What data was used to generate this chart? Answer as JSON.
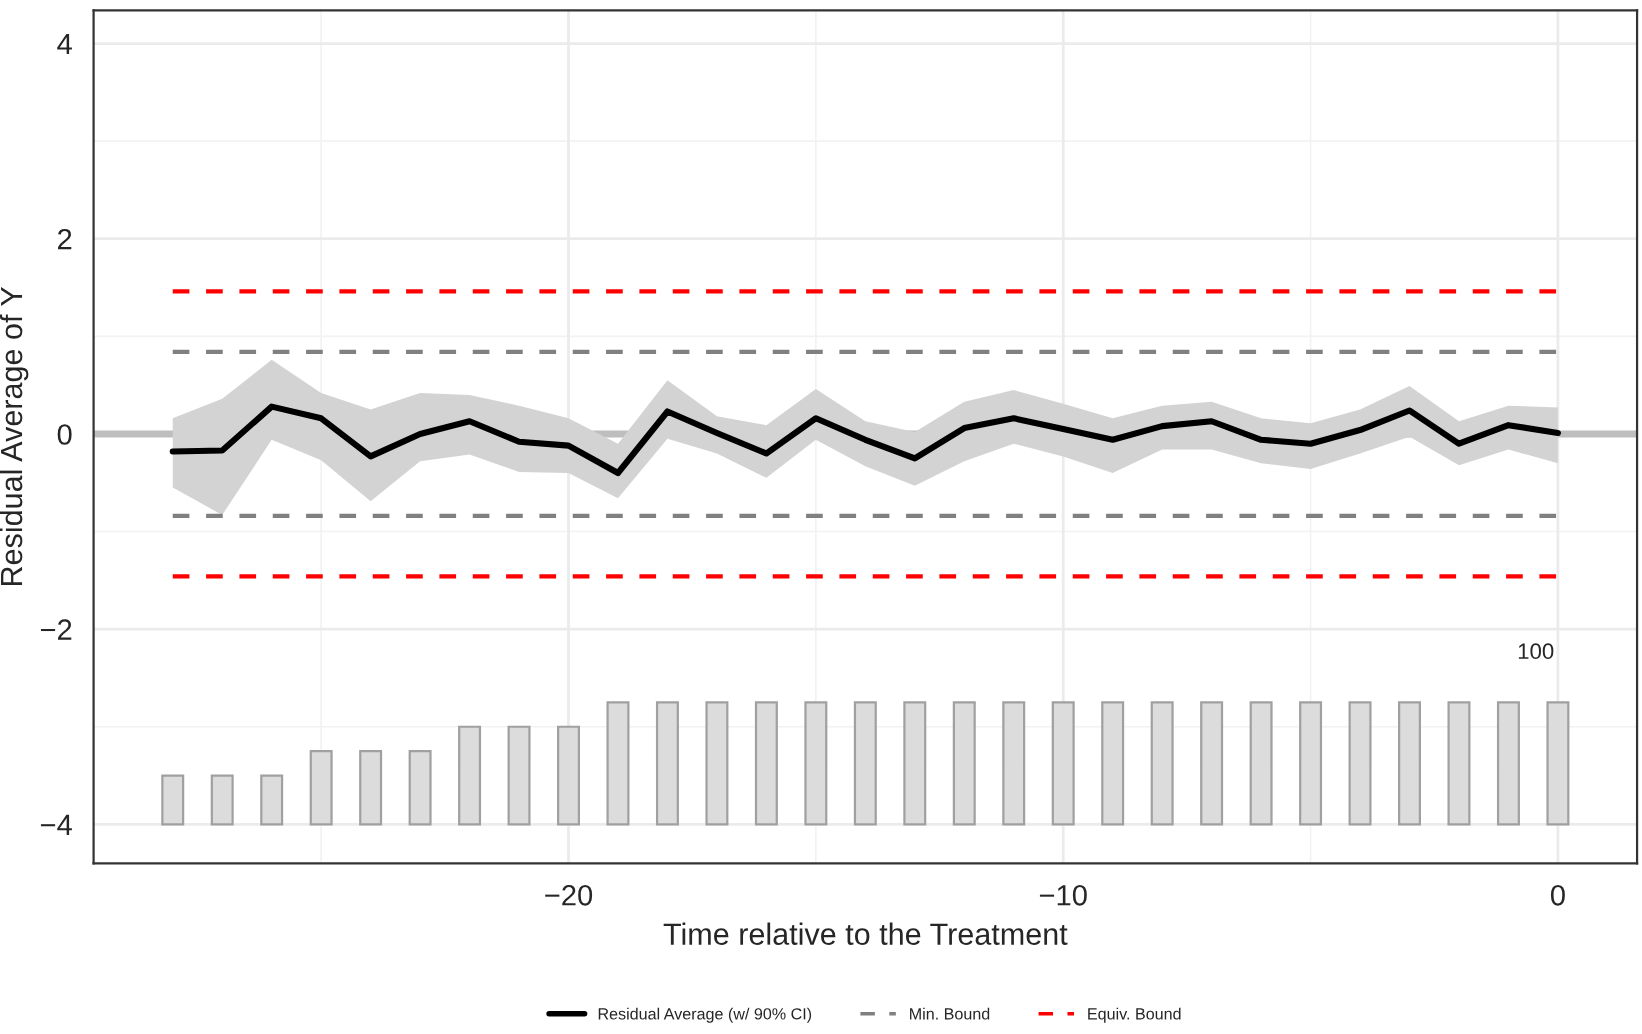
{
  "chart_data": {
    "type": "line",
    "xlabel": "Time relative to the Treatment",
    "ylabel": "Residual Average of Y",
    "xlim": [
      -29.6,
      1.6
    ],
    "ylim": [
      -4.4,
      4.34
    ],
    "xticks": [
      {
        "value": -20,
        "label": "−20"
      },
      {
        "value": -10,
        "label": "−10"
      },
      0
    ],
    "yticks": [
      {
        "value": -4,
        "label": "−4"
      },
      {
        "value": -2,
        "label": "−2"
      },
      0,
      2,
      4
    ],
    "grid": true,
    "legend": "bottom",
    "ref_lines": [
      {
        "axis": "y",
        "value": 0,
        "color": "#bebebe",
        "line_style": "solid"
      }
    ],
    "series": [
      {
        "type": "bar",
        "color": "#dcdcdc",
        "x": [
          -28,
          -27,
          -26,
          -25,
          -24,
          -23,
          -22,
          -21,
          -20,
          -19,
          -18,
          -17,
          -16,
          -15,
          -14,
          -13,
          -12,
          -11,
          -10,
          -9,
          -8,
          -7,
          -6,
          -5,
          -4,
          -3,
          -2,
          -1,
          0
        ],
        "base": [
          -4,
          -4,
          -4,
          -4,
          -4,
          -4,
          -4,
          -4,
          -4,
          -4,
          -4,
          -4,
          -4,
          -4,
          -4,
          -4,
          -4,
          -4,
          -4,
          -4,
          -4,
          -4,
          -4,
          -4,
          -4,
          -4,
          -4,
          -4,
          -4
        ],
        "values": [
          0.5,
          0.5,
          0.5,
          0.75,
          0.75,
          0.75,
          1.0,
          1.0,
          1.0,
          1.25,
          1.25,
          1.25,
          1.25,
          1.25,
          1.25,
          1.25,
          1.25,
          1.25,
          1.25,
          1.25,
          1.25,
          1.25,
          1.25,
          1.25,
          1.25,
          1.25,
          1.25,
          1.25,
          1.25
        ]
      },
      {
        "name": "Residual Average (w/ 90% CI)",
        "color": "#000000",
        "line_style": "solid",
        "x": [
          -28,
          -27,
          -26,
          -25,
          -24,
          -23,
          -22,
          -21,
          -20,
          -19,
          -18,
          -17,
          -16,
          -15,
          -14,
          -13,
          -12,
          -11,
          -10,
          -9,
          -8,
          -7,
          -6,
          -5,
          -4,
          -3,
          -2,
          -1,
          0
        ],
        "values": [
          -0.18,
          -0.17,
          0.28,
          0.16,
          -0.23,
          0.0,
          0.13,
          -0.08,
          -0.12,
          -0.4,
          0.23,
          0.01,
          -0.2,
          0.16,
          -0.06,
          -0.25,
          0.06,
          0.16,
          0.05,
          -0.06,
          0.08,
          0.13,
          -0.06,
          -0.1,
          0.04,
          0.24,
          -0.1,
          0.09,
          0.01
        ],
        "upper": [
          0.16,
          0.36,
          0.76,
          0.42,
          0.25,
          0.42,
          0.4,
          0.29,
          0.16,
          -0.1,
          0.55,
          0.18,
          0.09,
          0.46,
          0.13,
          0.02,
          0.33,
          0.45,
          0.31,
          0.16,
          0.29,
          0.33,
          0.16,
          0.11,
          0.25,
          0.49,
          0.13,
          0.29,
          0.27
        ],
        "lower": [
          -0.55,
          -0.83,
          -0.06,
          -0.27,
          -0.69,
          -0.28,
          -0.21,
          -0.39,
          -0.4,
          -0.66,
          -0.05,
          -0.2,
          -0.45,
          -0.06,
          -0.33,
          -0.53,
          -0.28,
          -0.1,
          -0.23,
          -0.4,
          -0.16,
          -0.16,
          -0.3,
          -0.36,
          -0.2,
          -0.03,
          -0.32,
          -0.16,
          -0.3
        ]
      },
      {
        "name": "Min. Bound",
        "color": "#808080",
        "line_style": "dashed",
        "x": [
          -28,
          0
        ],
        "values": [
          0.84,
          0.84
        ]
      },
      {
        "color": "#808080",
        "line_style": "dashed",
        "x": [
          -28,
          0
        ],
        "values": [
          -0.84,
          -0.84
        ]
      },
      {
        "name": "Equiv. Bound",
        "color": "#ff0000",
        "line_style": "dashed",
        "x": [
          -28,
          0
        ],
        "values": [
          1.46,
          1.46
        ]
      },
      {
        "color": "#ff0000",
        "line_style": "dashed",
        "x": [
          -28,
          0
        ],
        "values": [
          -1.46,
          -1.46
        ]
      }
    ],
    "annotations": [
      "100"
    ]
  }
}
